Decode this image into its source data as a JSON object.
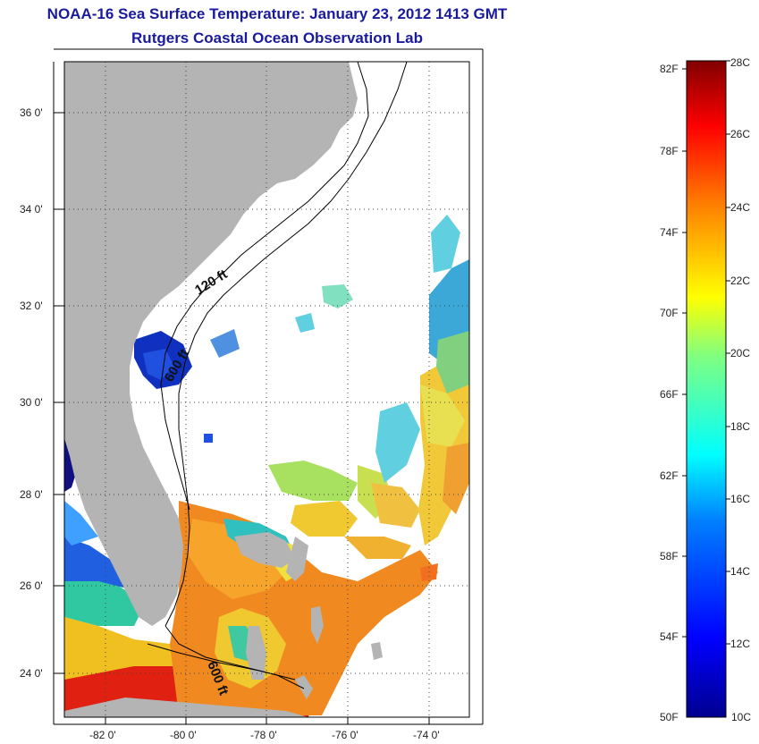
{
  "title": {
    "line1": "NOAA-16 Sea Surface Temperature:  January 23, 2012 1413 GMT",
    "line2": "Rutgers Coastal Ocean Observation Lab"
  },
  "map": {
    "lon_range": [
      -83,
      -73
    ],
    "lat_range": [
      23,
      37
    ],
    "lon_ticks": [
      "-82 0'",
      "-80 0'",
      "-78 0'",
      "-76 0'",
      "-74 0'"
    ],
    "lat_ticks": [
      "36 0'",
      "34 0'",
      "32 0'",
      "30 0'",
      "28 0'",
      "26 0'",
      "24 0'"
    ],
    "land_color": "#b4b4b4",
    "contour_labels": [
      "120 ft",
      "600 ft",
      "600 ft"
    ]
  },
  "colorbar": {
    "fahrenheit_labels": [
      "82F",
      "78F",
      "74F",
      "70F",
      "66F",
      "62F",
      "58F",
      "54F",
      "50F"
    ],
    "celsius_labels": [
      "28C",
      "26C",
      "24C",
      "22C",
      "20C",
      "18C",
      "16C",
      "14C",
      "12C",
      "10C"
    ],
    "range_c": [
      10,
      28
    ]
  }
}
